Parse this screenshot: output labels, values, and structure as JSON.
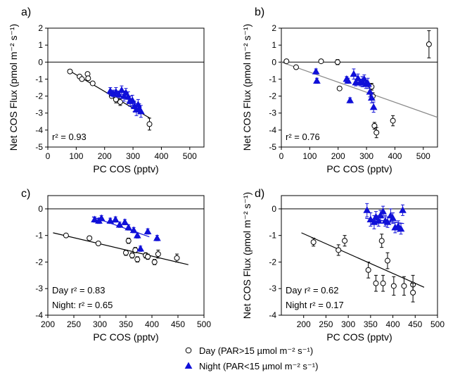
{
  "colors": {
    "day_edge": "#000000",
    "day_fill": "#ffffff",
    "night_fill": "#1010d8",
    "day_fit": "#000000",
    "night_fit": "#1010d8",
    "panel_b_fit": "#8a8a8a"
  },
  "legend": {
    "day_label": "Day (PAR>15 µmol m⁻² s⁻¹)",
    "night_label": "Night (PAR<15 µmol m⁻² s⁻¹)"
  },
  "chart_data": [
    {
      "id": "a",
      "type": "scatter",
      "panel_label": "a)",
      "xlabel": "PC COS (pptv)",
      "ylabel": "Net COS Flux (pmol m⁻² s⁻¹)",
      "xlim": [
        0,
        550
      ],
      "ylim": [
        -5,
        2
      ],
      "xticks": [
        0,
        100,
        200,
        300,
        400,
        500
      ],
      "yticks": [
        -5,
        -4,
        -3,
        -2,
        -1,
        0,
        1,
        2
      ],
      "zero_line": true,
      "annotations": [
        "r² = 0.93"
      ],
      "series": [
        {
          "kind": "day",
          "points": [
            {
              "x": 78,
              "y": -0.55,
              "err": 0.05
            },
            {
              "x": 112,
              "y": -0.85,
              "err": 0.05
            },
            {
              "x": 120,
              "y": -1.0,
              "err": 0.05
            },
            {
              "x": 140,
              "y": -0.7,
              "err": 0.1
            },
            {
              "x": 142,
              "y": -0.95,
              "err": 0.1
            },
            {
              "x": 158,
              "y": -1.25,
              "err": 0.1
            },
            {
              "x": 225,
              "y": -2.0,
              "err": 0.1
            },
            {
              "x": 240,
              "y": -2.2,
              "err": 0.2
            },
            {
              "x": 255,
              "y": -2.35,
              "err": 0.2
            },
            {
              "x": 358,
              "y": -3.65,
              "err": 0.35
            }
          ]
        },
        {
          "kind": "night",
          "points": [
            {
              "x": 220,
              "y": -1.7,
              "err": 0.2
            },
            {
              "x": 230,
              "y": -1.85,
              "err": 0.2
            },
            {
              "x": 240,
              "y": -1.75,
              "err": 0.25
            },
            {
              "x": 250,
              "y": -1.9,
              "err": 0.2
            },
            {
              "x": 260,
              "y": -1.65,
              "err": 0.25
            },
            {
              "x": 268,
              "y": -2.0,
              "err": 0.3
            },
            {
              "x": 275,
              "y": -1.8,
              "err": 0.25
            },
            {
              "x": 283,
              "y": -2.05,
              "err": 0.3
            },
            {
              "x": 290,
              "y": -2.3,
              "err": 0.3
            },
            {
              "x": 298,
              "y": -2.25,
              "err": 0.3
            },
            {
              "x": 305,
              "y": -2.6,
              "err": 0.3
            },
            {
              "x": 312,
              "y": -2.8,
              "err": 0.35
            },
            {
              "x": 318,
              "y": -2.5,
              "err": 0.3
            },
            {
              "x": 322,
              "y": -2.75,
              "err": 0.3
            },
            {
              "x": 328,
              "y": -2.9,
              "err": 0.35
            }
          ]
        }
      ],
      "fit_lines": [
        {
          "kind": "day",
          "x": [
            70,
            360
          ],
          "y": [
            -0.45,
            -3.3
          ]
        }
      ]
    },
    {
      "id": "b",
      "type": "scatter",
      "panel_label": "b)",
      "xlabel": "PC COS (pptv)",
      "ylabel": "Net COS Flux (pmol m⁻² s⁻¹)",
      "xlim": [
        0,
        550
      ],
      "ylim": [
        -5,
        2
      ],
      "xticks": [
        0,
        100,
        200,
        300,
        400,
        500
      ],
      "yticks": [
        -5,
        -4,
        -3,
        -2,
        -1,
        0,
        1,
        2
      ],
      "zero_line": true,
      "annotations": [
        "r² = 0.76"
      ],
      "series": [
        {
          "kind": "day",
          "points": [
            {
              "x": 18,
              "y": 0.05,
              "err": 0.05
            },
            {
              "x": 52,
              "y": -0.3,
              "err": 0.1
            },
            {
              "x": 140,
              "y": 0.05,
              "err": 0.05
            },
            {
              "x": 198,
              "y": 0.0,
              "err": 0.15
            },
            {
              "x": 205,
              "y": -1.55,
              "err": 0.1
            },
            {
              "x": 318,
              "y": -1.45,
              "err": 0.2
            },
            {
              "x": 322,
              "y": -2.0,
              "err": 0.2
            },
            {
              "x": 328,
              "y": -3.75,
              "err": 0.2
            },
            {
              "x": 335,
              "y": -4.15,
              "err": 0.3
            },
            {
              "x": 393,
              "y": -3.45,
              "err": 0.3
            },
            {
              "x": 520,
              "y": 1.05,
              "err": 0.8
            }
          ]
        },
        {
          "kind": "night",
          "points": [
            {
              "x": 122,
              "y": -0.55,
              "err": 0.15
            },
            {
              "x": 125,
              "y": -1.1,
              "err": 0.15
            },
            {
              "x": 230,
              "y": -1.0,
              "err": 0.15
            },
            {
              "x": 235,
              "y": -1.1,
              "err": 0.15
            },
            {
              "x": 242,
              "y": -2.25,
              "err": 0.15
            },
            {
              "x": 255,
              "y": -0.7,
              "err": 0.3
            },
            {
              "x": 262,
              "y": -1.2,
              "err": 0.2
            },
            {
              "x": 270,
              "y": -0.95,
              "err": 0.25
            },
            {
              "x": 278,
              "y": -1.2,
              "err": 0.2
            },
            {
              "x": 285,
              "y": -1.15,
              "err": 0.3
            },
            {
              "x": 292,
              "y": -1.0,
              "err": 0.25
            },
            {
              "x": 298,
              "y": -1.3,
              "err": 0.25
            },
            {
              "x": 305,
              "y": -1.25,
              "err": 0.3
            },
            {
              "x": 312,
              "y": -1.75,
              "err": 0.3
            },
            {
              "x": 318,
              "y": -2.1,
              "err": 0.3
            },
            {
              "x": 325,
              "y": -2.65,
              "err": 0.3
            }
          ]
        }
      ],
      "fit_lines": [
        {
          "kind": "gray",
          "x": [
            0,
            550
          ],
          "y": [
            0.0,
            -3.25
          ]
        }
      ]
    },
    {
      "id": "c",
      "type": "scatter",
      "panel_label": "c)",
      "xlabel": "PC COS (pptv)",
      "ylabel": "",
      "xlim": [
        200,
        500
      ],
      "ylim": [
        -4,
        0.5
      ],
      "xticks": [
        200,
        250,
        300,
        350,
        400,
        450,
        500
      ],
      "yticks": [
        -4,
        -3,
        -2,
        -1,
        0
      ],
      "zero_line": true,
      "annotations": [
        "Day r² = 0.83",
        "Night: r² = 0.65"
      ],
      "series": [
        {
          "kind": "day",
          "points": [
            {
              "x": 235,
              "y": -1.0,
              "err": 0.05
            },
            {
              "x": 280,
              "y": -1.1,
              "err": 0.05
            },
            {
              "x": 297,
              "y": -1.3,
              "err": 0.05
            },
            {
              "x": 350,
              "y": -1.65,
              "err": 0.1
            },
            {
              "x": 355,
              "y": -1.2,
              "err": 0.1
            },
            {
              "x": 362,
              "y": -1.75,
              "err": 0.1
            },
            {
              "x": 368,
              "y": -1.55,
              "err": 0.1
            },
            {
              "x": 372,
              "y": -1.9,
              "err": 0.1
            },
            {
              "x": 388,
              "y": -1.75,
              "err": 0.1
            },
            {
              "x": 392,
              "y": -1.8,
              "err": 0.1
            },
            {
              "x": 405,
              "y": -2.0,
              "err": 0.1
            },
            {
              "x": 412,
              "y": -1.7,
              "err": 0.15
            },
            {
              "x": 448,
              "y": -1.85,
              "err": 0.15
            }
          ]
        },
        {
          "kind": "night",
          "points": [
            {
              "x": 290,
              "y": -0.4,
              "err": 0.1
            },
            {
              "x": 298,
              "y": -0.45,
              "err": 0.1
            },
            {
              "x": 303,
              "y": -0.35,
              "err": 0.1
            },
            {
              "x": 320,
              "y": -0.45,
              "err": 0.1
            },
            {
              "x": 330,
              "y": -0.4,
              "err": 0.1
            },
            {
              "x": 338,
              "y": -0.6,
              "err": 0.1
            },
            {
              "x": 348,
              "y": -0.5,
              "err": 0.1
            },
            {
              "x": 355,
              "y": -0.7,
              "err": 0.1
            },
            {
              "x": 365,
              "y": -0.8,
              "err": 0.1
            },
            {
              "x": 372,
              "y": -1.0,
              "err": 0.1
            },
            {
              "x": 378,
              "y": -1.5,
              "err": 0.1
            },
            {
              "x": 392,
              "y": -0.85,
              "err": 0.1
            },
            {
              "x": 410,
              "y": -1.1,
              "err": 0.1
            }
          ]
        }
      ],
      "fit_lines": [
        {
          "kind": "night",
          "x": [
            285,
            395
          ],
          "y": [
            -0.3,
            -1.05
          ]
        },
        {
          "kind": "day",
          "x": [
            210,
            470
          ],
          "y": [
            -0.9,
            -2.1
          ]
        }
      ]
    },
    {
      "id": "d",
      "type": "scatter",
      "panel_label": "d)",
      "xlabel": "PC COS (pptv)",
      "ylabel": "Net COS Flux (pmol m⁻² s⁻¹)",
      "xlim": [
        150,
        500
      ],
      "ylim": [
        -4,
        0.5
      ],
      "xticks": [
        200,
        250,
        300,
        350,
        400,
        450,
        500
      ],
      "yticks": [
        -4,
        -3,
        -2,
        -1,
        0
      ],
      "zero_line": true,
      "annotations": [
        "Day r² = 0.62",
        "Night r² = 0.17"
      ],
      "series": [
        {
          "kind": "day",
          "points": [
            {
              "x": 222,
              "y": -1.25,
              "err": 0.15
            },
            {
              "x": 278,
              "y": -1.55,
              "err": 0.2
            },
            {
              "x": 292,
              "y": -1.2,
              "err": 0.2
            },
            {
              "x": 345,
              "y": -2.3,
              "err": 0.3
            },
            {
              "x": 362,
              "y": -2.8,
              "err": 0.3
            },
            {
              "x": 375,
              "y": -1.2,
              "err": 0.25
            },
            {
              "x": 378,
              "y": -2.8,
              "err": 0.3
            },
            {
              "x": 388,
              "y": -1.95,
              "err": 0.3
            },
            {
              "x": 402,
              "y": -2.9,
              "err": 0.35
            },
            {
              "x": 425,
              "y": -2.9,
              "err": 0.35
            },
            {
              "x": 445,
              "y": -2.85,
              "err": 0.35
            },
            {
              "x": 445,
              "y": -3.15,
              "err": 0.35
            }
          ]
        },
        {
          "kind": "night",
          "points": [
            {
              "x": 342,
              "y": -0.05,
              "err": 0.25
            },
            {
              "x": 350,
              "y": -0.4,
              "err": 0.25
            },
            {
              "x": 358,
              "y": -0.5,
              "err": 0.25
            },
            {
              "x": 362,
              "y": -0.3,
              "err": 0.2
            },
            {
              "x": 368,
              "y": -0.45,
              "err": 0.2
            },
            {
              "x": 372,
              "y": -0.25,
              "err": 0.2
            },
            {
              "x": 378,
              "y": -0.1,
              "err": 0.2
            },
            {
              "x": 383,
              "y": -0.45,
              "err": 0.2
            },
            {
              "x": 388,
              "y": -0.5,
              "err": 0.2
            },
            {
              "x": 395,
              "y": -0.25,
              "err": 0.25
            },
            {
              "x": 400,
              "y": -0.35,
              "err": 0.2
            },
            {
              "x": 405,
              "y": -0.7,
              "err": 0.2
            },
            {
              "x": 412,
              "y": -0.65,
              "err": 0.2
            },
            {
              "x": 418,
              "y": -0.75,
              "err": 0.2
            },
            {
              "x": 422,
              "y": -0.05,
              "err": 0.2
            }
          ]
        }
      ],
      "fit_lines": [
        {
          "kind": "night",
          "x": [
            338,
            425
          ],
          "y": [
            -0.35,
            -0.55
          ]
        },
        {
          "kind": "day",
          "x": [
            195,
            470
          ],
          "y": [
            -0.9,
            -2.95
          ]
        }
      ]
    }
  ]
}
